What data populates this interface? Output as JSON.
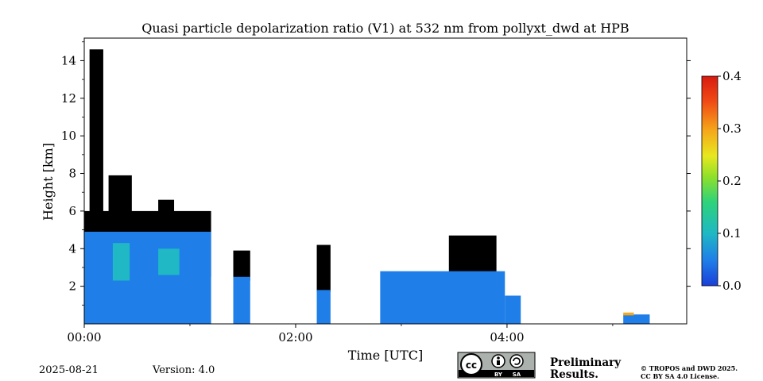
{
  "chart_data": {
    "type": "heatmap",
    "title": "Quasi particle depolarization ratio (V1) at 532 nm from pollyxt_dwd at HPB",
    "xlabel": "Time [UTC]",
    "ylabel": "Height [km]",
    "x_ticks": [
      "00:00",
      "02:00",
      "04:00"
    ],
    "x_range_hours": [
      0,
      5.7
    ],
    "y_ticks": [
      "2",
      "4",
      "6",
      "8",
      "10",
      "12",
      "14"
    ],
    "y_range_km": [
      0,
      15.2
    ],
    "colorbar": {
      "range": [
        0.0,
        0.4
      ],
      "ticks": [
        "0.0",
        "0.1",
        "0.2",
        "0.3",
        "0.4"
      ],
      "colors": [
        "#1a3fd8",
        "#1f7ee8",
        "#1fb8c4",
        "#2ed37a",
        "#8fe02a",
        "#e8e81f",
        "#f5a81a",
        "#f04a14",
        "#d81a10"
      ]
    },
    "regions": [
      {
        "kind": "cloud_mask",
        "t": [
          0.0,
          1.2
        ],
        "h": [
          2.5,
          6.0
        ]
      },
      {
        "kind": "cloud_mask",
        "t": [
          0.05,
          0.18
        ],
        "h": [
          5.0,
          14.6
        ]
      },
      {
        "kind": "cloud_mask",
        "t": [
          0.23,
          0.45
        ],
        "h": [
          5.0,
          7.9
        ]
      },
      {
        "kind": "cloud_mask",
        "t": [
          0.7,
          0.85
        ],
        "h": [
          4.3,
          6.6
        ]
      },
      {
        "kind": "cloud_mask",
        "t": [
          1.41,
          1.57
        ],
        "h": [
          2.3,
          3.9
        ]
      },
      {
        "kind": "cloud_mask",
        "t": [
          2.2,
          2.33
        ],
        "h": [
          1.7,
          4.2
        ]
      },
      {
        "kind": "cloud_mask",
        "t": [
          3.45,
          3.9
        ],
        "h": [
          2.4,
          4.7
        ]
      },
      {
        "kind": "depol_low",
        "t": [
          0.0,
          1.2
        ],
        "h": [
          0.0,
          4.9
        ],
        "value": 0.03
      },
      {
        "kind": "depol_low",
        "t": [
          1.41,
          1.57
        ],
        "h": [
          0.0,
          2.5
        ],
        "value": 0.03
      },
      {
        "kind": "depol_low",
        "t": [
          2.2,
          2.33
        ],
        "h": [
          0.0,
          1.8
        ],
        "value": 0.03
      },
      {
        "kind": "depol_low",
        "t": [
          2.8,
          3.98
        ],
        "h": [
          0.0,
          2.8
        ],
        "value": 0.03
      },
      {
        "kind": "depol_low",
        "t": [
          3.98,
          4.13
        ],
        "h": [
          0.0,
          1.5
        ],
        "value": 0.03
      },
      {
        "kind": "depol_low",
        "t": [
          5.1,
          5.35
        ],
        "h": [
          0.0,
          0.5
        ],
        "value": 0.03
      },
      {
        "kind": "depol_mid",
        "t": [
          0.27,
          0.43
        ],
        "h": [
          2.3,
          4.3
        ],
        "value": 0.12
      },
      {
        "kind": "depol_mid",
        "t": [
          0.7,
          0.9
        ],
        "h": [
          2.6,
          4.0
        ],
        "value": 0.11
      },
      {
        "kind": "depol_high",
        "t": [
          5.1,
          5.2
        ],
        "h": [
          0.45,
          0.6
        ],
        "value": 0.28
      }
    ]
  },
  "footer": {
    "date": "2025-08-21",
    "version": "Version: 4.0",
    "license_badge": {
      "cc": "cc",
      "by": "BY",
      "sa": "SA"
    },
    "preliminary_line1": "Preliminary",
    "preliminary_line2": "Results.",
    "copyright_line1": "© TROPOS and DWD 2025.",
    "copyright_line2": "CC BY SA 4.0 License.",
    "preliminary_color": "#e8322a"
  }
}
